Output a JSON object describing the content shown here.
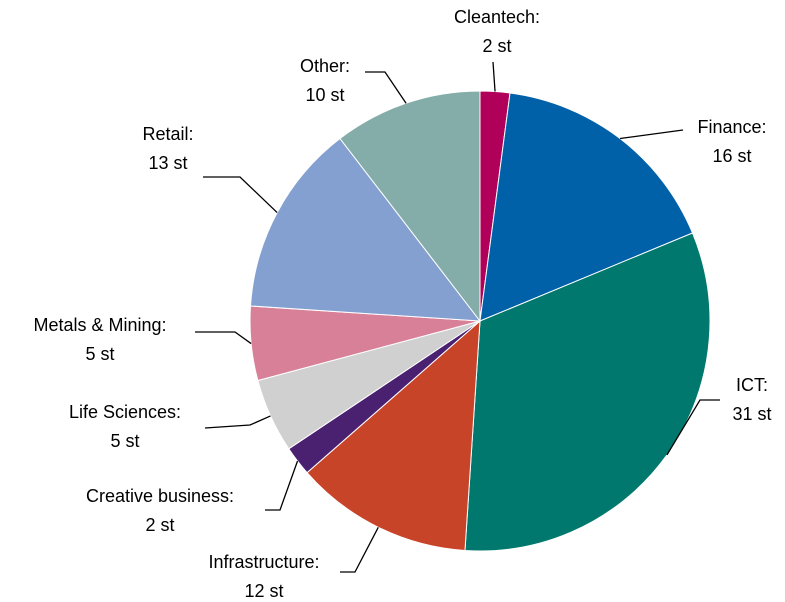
{
  "chart_data": {
    "type": "pie",
    "categories": [
      "Cleantech:",
      "Finance:",
      "ICT:",
      "Infrastructure:",
      "Creative business:",
      "Life Sciences:",
      "Metals & Mining:",
      "Retail:",
      "Other:"
    ],
    "values": [
      2,
      16,
      31,
      12,
      2,
      5,
      5,
      13,
      10
    ],
    "value_labels": [
      "2 st",
      "16 st",
      "31 st",
      "12 st",
      "2 st",
      "5 st",
      "5 st",
      "13 st",
      "10 st"
    ],
    "colors": [
      "#b0005a",
      "#0060a8",
      "#00786e",
      "#c84428",
      "#4a2070",
      "#d0d0d0",
      "#d88098",
      "#84a0d0",
      "#84aca8"
    ]
  }
}
